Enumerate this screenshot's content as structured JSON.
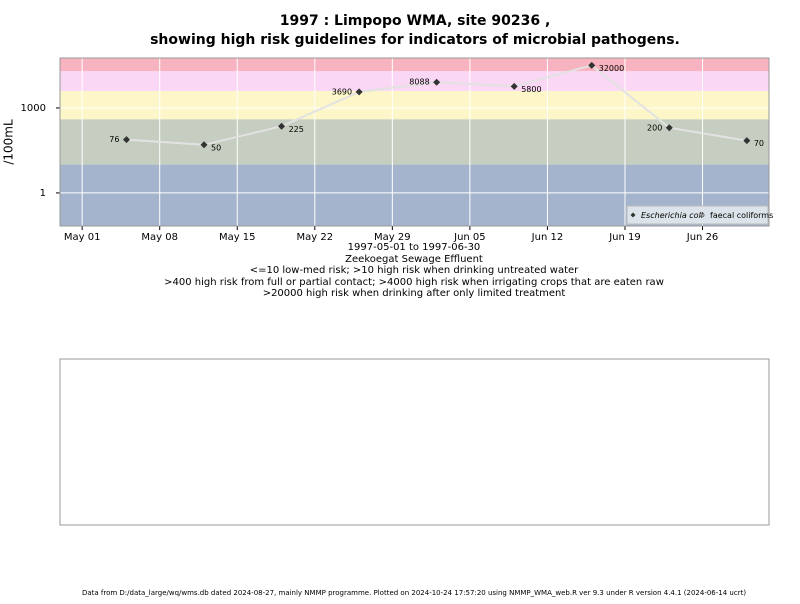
{
  "chart_data": {
    "type": "line",
    "title": "1997 : Limpopo WMA, site 90236 ,",
    "subtitle": "showing high risk guidelines for indicators of microbial pathogens.",
    "ylabel": "/100mL",
    "xlabel": "1997-05-01 to 1997-06-30",
    "site_name": "Zeekoegat Sewage Effluent",
    "annotations": [
      "<=10 low-med risk; >10 high risk when drinking untreated water",
      ">400 high risk from full or partial contact; >4000 high risk when irrigating crops that are eaten raw",
      ">20000 high risk when drinking after only limited treatment"
    ],
    "footer": "Data from D:/data_large/wq/wms.db dated 2024-08-27, mainly NMMP programme. Plotted on 2024-10-24 17:57:20 using NMMP_WMA_web.R ver 9.3 under R version 4.4.1 (2024-06-14 ucrt)",
    "x": [
      "1997-05-05",
      "1997-05-12",
      "1997-05-19",
      "1997-05-26",
      "1997-06-02",
      "1997-06-09",
      "1997-06-16",
      "1997-06-23",
      "1997-06-30"
    ],
    "series": [
      {
        "name": "Escherichia coli",
        "color": "#333333",
        "values": [
          76,
          50,
          225,
          3690,
          8088,
          5800,
          32000,
          200,
          70
        ]
      },
      {
        "name": "faecal coliforms",
        "color": "#666666",
        "values": [
          null,
          null,
          null,
          null,
          null,
          null,
          null,
          null,
          null
        ]
      }
    ],
    "xlim": [
      "1997-04-29",
      "1997-07-02"
    ],
    "xticks": [
      {
        "value": "1997-05-01",
        "label": "May 01"
      },
      {
        "value": "1997-05-08",
        "label": "May 08"
      },
      {
        "value": "1997-05-15",
        "label": "May 15"
      },
      {
        "value": "1997-05-22",
        "label": "May 22"
      },
      {
        "value": "1997-05-29",
        "label": "May 29"
      },
      {
        "value": "1997-06-05",
        "label": "Jun 05"
      },
      {
        "value": "1997-06-12",
        "label": "Jun 12"
      },
      {
        "value": "1997-06-19",
        "label": "Jun 19"
      },
      {
        "value": "1997-06-26",
        "label": "Jun 26"
      }
    ],
    "ylim": [
      0.068,
      58000
    ],
    "yticks": [
      1,
      1000
    ],
    "log_y": true,
    "grid": true,
    "thresholds": [
      10,
      400,
      4000,
      20000
    ],
    "band_colors": [
      "#a3b4cc",
      "#c5cec0",
      "#fdf6c8",
      "#fad7f5",
      "#f7b4c0"
    ],
    "line_color": "#e2e2e2",
    "legend_position": "lower right"
  }
}
